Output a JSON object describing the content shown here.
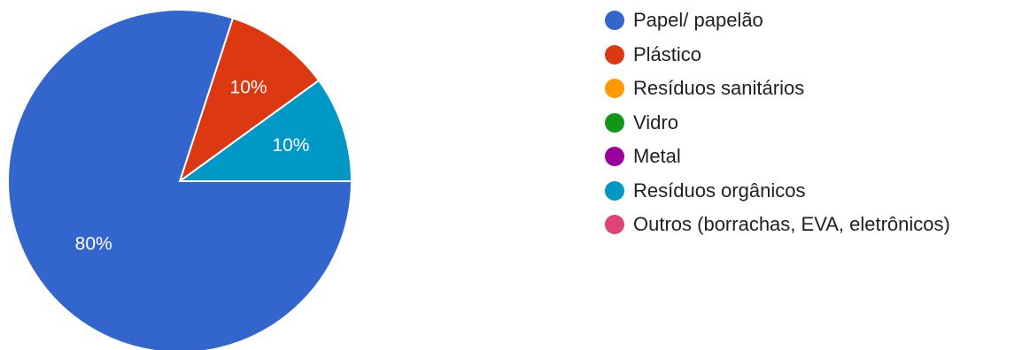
{
  "chart_data": {
    "type": "pie",
    "slices": [
      {
        "name": "Papel/ papelão",
        "value": 80,
        "label": "80%",
        "color": "#3366cc"
      },
      {
        "name": "Plástico",
        "value": 10,
        "label": "10%",
        "color": "#dc3912"
      },
      {
        "name": "Resíduos sanitários",
        "value": 0,
        "label": "",
        "color": "#ff9900"
      },
      {
        "name": "Vidro",
        "value": 0,
        "label": "",
        "color": "#109618"
      },
      {
        "name": "Metal",
        "value": 0,
        "label": "",
        "color": "#990099"
      },
      {
        "name": "Resíduos orgânicos",
        "value": 10,
        "label": "10%",
        "color": "#0099c6"
      },
      {
        "name": "Outros (borrachas, EVA, eletrônicos)",
        "value": 0,
        "label": "",
        "color": "#dd4477"
      }
    ],
    "legend_position": "right"
  }
}
